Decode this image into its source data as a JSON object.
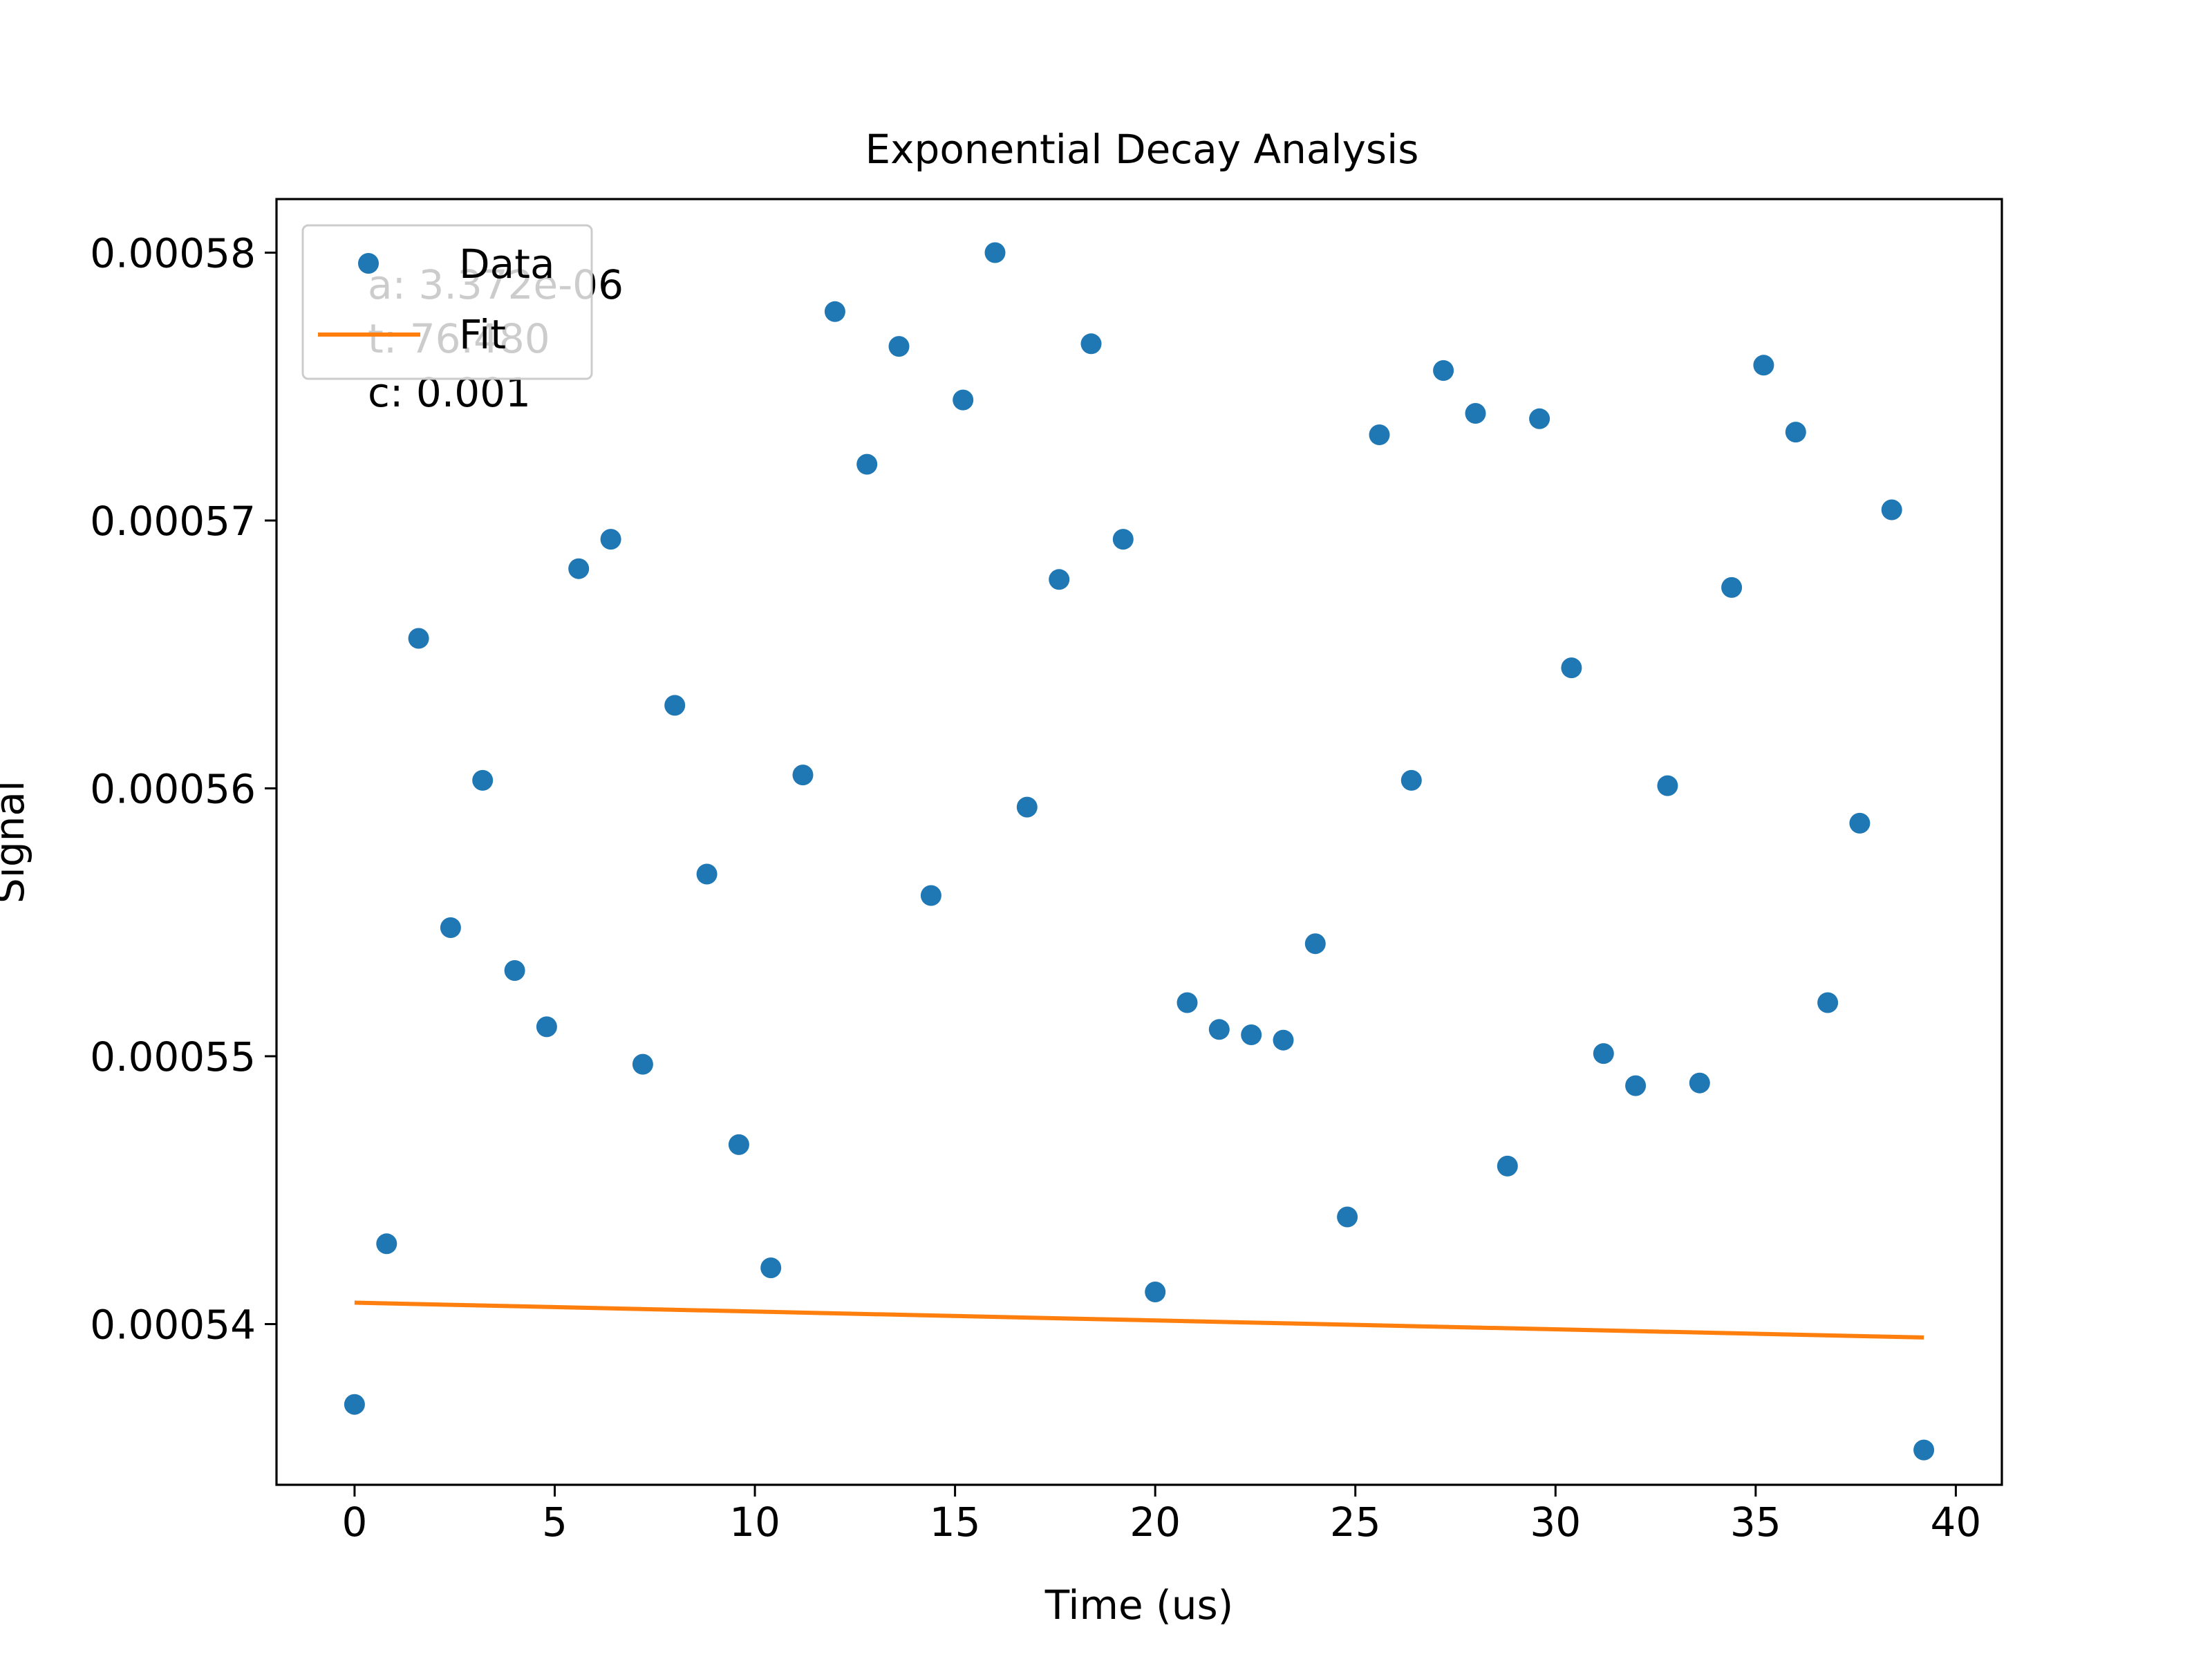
{
  "chart_data": {
    "type": "scatter",
    "title": "Exponential Decay Analysis",
    "xlabel": "Time (us)",
    "ylabel": "Signal",
    "xlim": [
      -1.95,
      41.15
    ],
    "ylim": [
      0.000534,
      0.000582
    ],
    "x_ticks": [
      0,
      5,
      10,
      15,
      20,
      25,
      30,
      35,
      40
    ],
    "x_tick_labels": [
      "0",
      "5",
      "10",
      "15",
      "20",
      "25",
      "30",
      "35",
      "40"
    ],
    "y_ticks": [
      0.00054,
      0.00055,
      0.00056,
      0.00057,
      0.00058
    ],
    "y_tick_labels": [
      "0.00054",
      "0.00055",
      "0.00056",
      "0.00057",
      "0.00058"
    ],
    "grid": false,
    "legend_position": "top-left",
    "legend": [
      "Data",
      "Fit"
    ],
    "annotation_lines": [
      "a: 3.372e-06",
      "t: 76.480",
      "c: 0.001"
    ],
    "colors": {
      "data": "#1f77b4",
      "fit": "#ff7f0e",
      "axes": "#000000",
      "background": "#ffffff"
    },
    "series": [
      {
        "name": "Data",
        "kind": "scatter",
        "x": [
          0,
          0.8,
          1.6,
          2.4,
          3.2,
          4.0,
          4.8,
          5.6,
          6.4,
          7.2,
          8.0,
          8.8,
          9.6,
          10.4,
          11.2,
          12.0,
          12.8,
          13.6,
          14.4,
          15.2,
          16.0,
          16.8,
          17.6,
          18.4,
          19.2,
          20.0,
          20.8,
          21.6,
          22.4,
          23.2,
          24.0,
          24.8,
          25.6,
          26.4,
          27.2,
          28.0,
          28.8,
          29.6,
          30.4,
          31.2,
          32.0,
          32.8,
          33.6,
          34.4,
          35.2,
          36.0,
          36.8,
          37.6,
          38.4,
          39.2
        ],
        "y": [
          0.000537,
          0.000543,
          0.0005656,
          0.0005548,
          0.0005603,
          0.0005532,
          0.0005511,
          0.0005682,
          0.0005693,
          0.0005497,
          0.0005631,
          0.0005568,
          0.0005467,
          0.0005421,
          0.0005605,
          0.0005778,
          0.0005721,
          0.0005765,
          0.000556,
          0.0005745,
          0.00058,
          0.0005593,
          0.0005678,
          0.0005766,
          0.0005693,
          0.0005412,
          0.000552,
          0.000551,
          0.0005508,
          0.0005506,
          0.0005542,
          0.000544,
          0.0005732,
          0.0005603,
          0.0005756,
          0.000574,
          0.0005459,
          0.0005738,
          0.0005645,
          0.0005501,
          0.0005489,
          0.0005601,
          0.000549,
          0.0005675,
          0.0005758,
          0.0005733,
          0.000552,
          0.0005587,
          0.0005704,
          0.0005353
        ]
      },
      {
        "name": "Fit",
        "kind": "line",
        "x": [
          0,
          39.2
        ],
        "y": [
          0.0005408,
          0.0005395
        ]
      }
    ]
  }
}
